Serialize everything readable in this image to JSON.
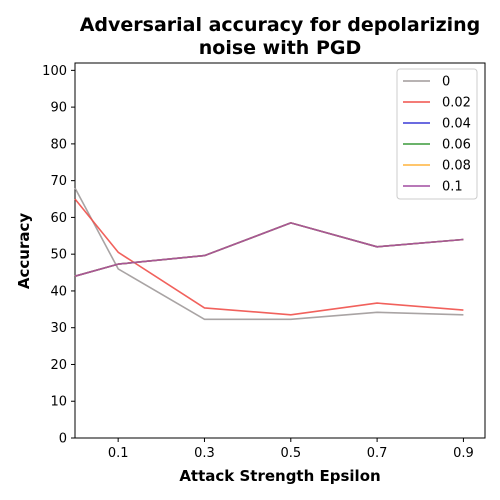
{
  "chart_data": {
    "type": "line",
    "title_line1": "Adversarial accuracy for depolarizing",
    "title_line2": "noise with PGD",
    "xlabel": "Attack Strength Epsilon",
    "ylabel": "Accuracy",
    "x_ticks": [
      "0.1",
      "0.3",
      "0.5",
      "0.7",
      "0.9"
    ],
    "y_ticks": [
      "0",
      "10",
      "20",
      "30",
      "40",
      "50",
      "60",
      "70",
      "80",
      "90",
      "100"
    ],
    "xlim": [
      0.0,
      0.95
    ],
    "ylim": [
      0,
      102
    ],
    "grid": false,
    "legend_position": "top-right",
    "x": [
      0.0,
      0.1,
      0.3,
      0.5,
      0.7,
      0.9
    ],
    "series": [
      {
        "name": "0",
        "color": "#a09a9a",
        "values": [
          68.0,
          46.0,
          32.3,
          32.3,
          34.2,
          33.5
        ]
      },
      {
        "name": "0.02",
        "color": "#f0504a",
        "values": [
          65.0,
          50.5,
          35.4,
          33.5,
          36.7,
          34.8
        ]
      },
      {
        "name": "0.04",
        "color": "#3a3ad6",
        "values": [
          44.0,
          47.3,
          49.6,
          58.5,
          52.0,
          54.0
        ]
      },
      {
        "name": "0.06",
        "color": "#3a9a3a",
        "values": [
          44.0,
          47.3,
          49.6,
          58.5,
          52.0,
          54.0
        ]
      },
      {
        "name": "0.08",
        "color": "#ffb43c",
        "values": [
          44.0,
          47.3,
          49.6,
          58.5,
          52.0,
          54.0
        ]
      },
      {
        "name": "0.1",
        "color": "#a04ca0",
        "values": [
          44.0,
          47.3,
          49.6,
          58.5,
          52.0,
          54.0
        ]
      }
    ]
  }
}
